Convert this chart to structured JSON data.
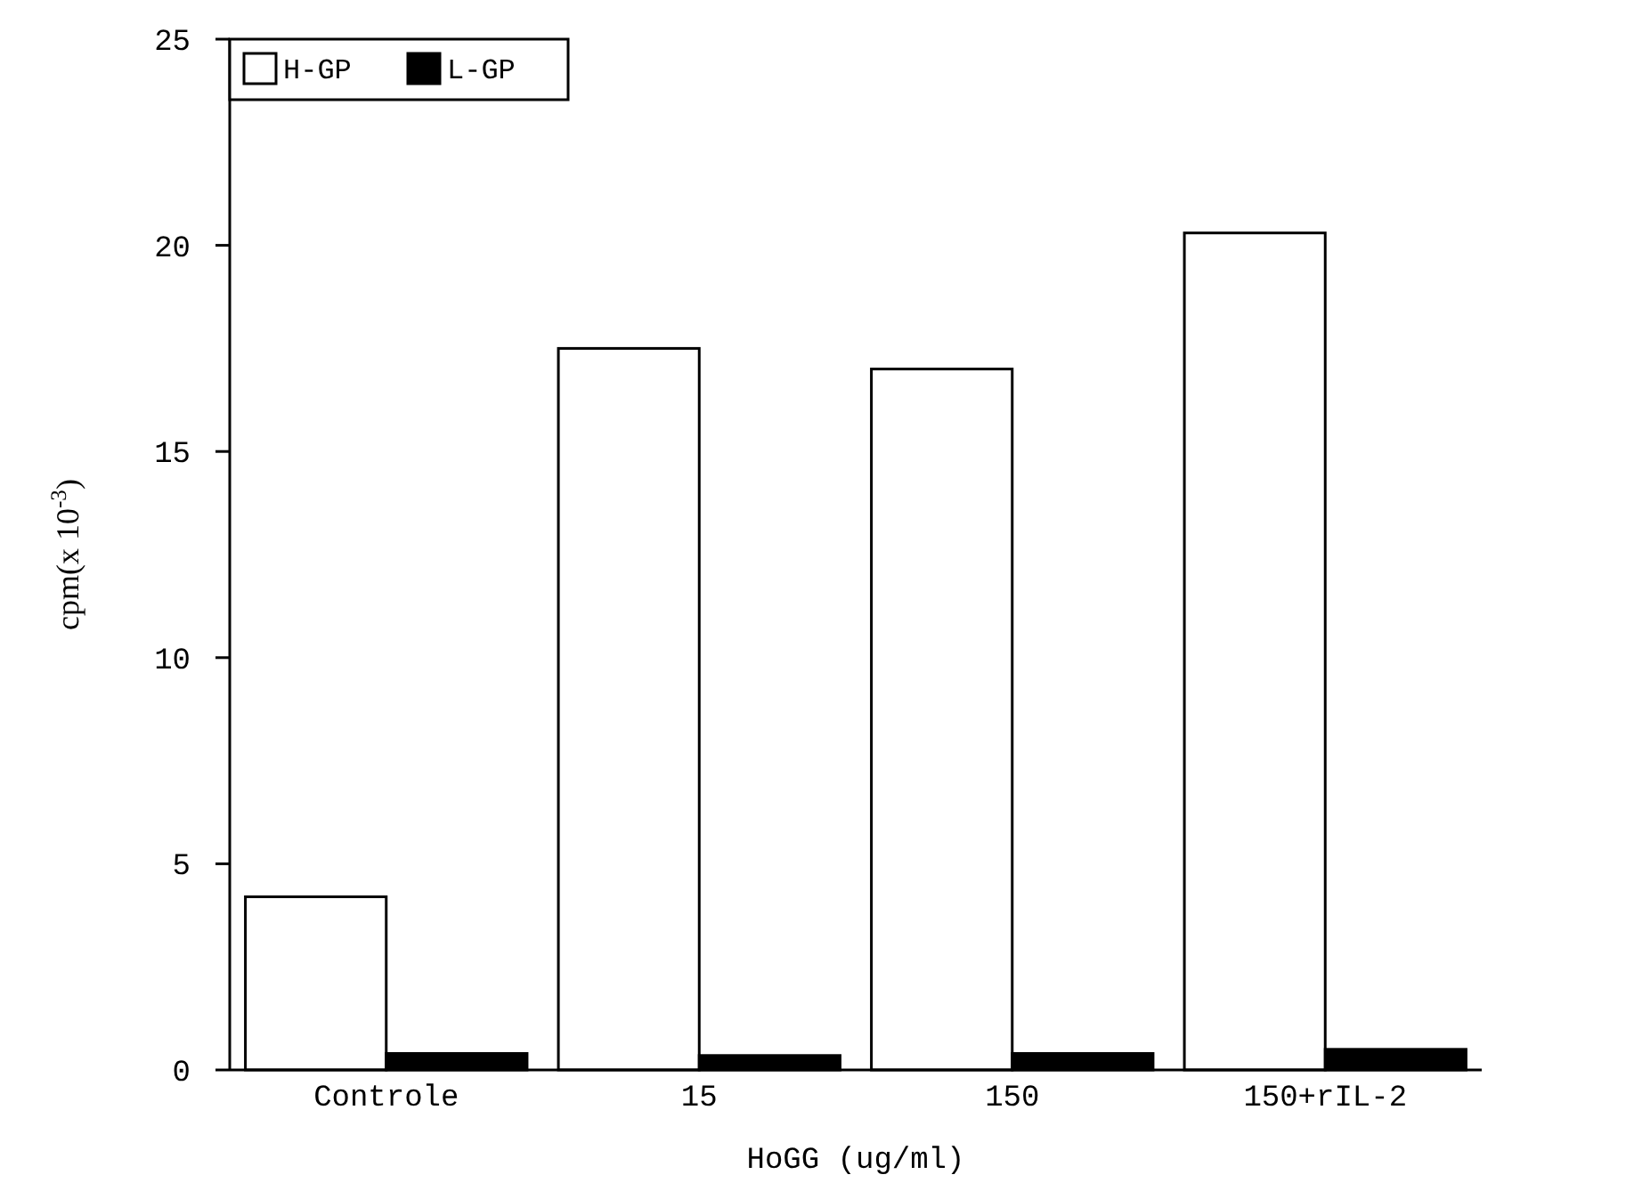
{
  "chart_data": {
    "type": "bar",
    "xlabel": "HoGG (ug/ml)",
    "ylabel": "cpm(x 10$^{-3}$)",
    "categories": [
      "Controle",
      "15",
      "150",
      "150+rIL-2"
    ],
    "series": [
      {
        "name": "H-GP",
        "color": "#ffffff",
        "values": [
          4.2,
          17.5,
          17.0,
          20.3
        ]
      },
      {
        "name": "L-GP",
        "color": "#000000",
        "values": [
          0.4,
          0.35,
          0.4,
          0.5
        ]
      }
    ],
    "ylim": [
      0,
      25
    ],
    "yticks": [
      0,
      5,
      10,
      15,
      20,
      25
    ],
    "legend": "top left",
    "grid": false
  }
}
